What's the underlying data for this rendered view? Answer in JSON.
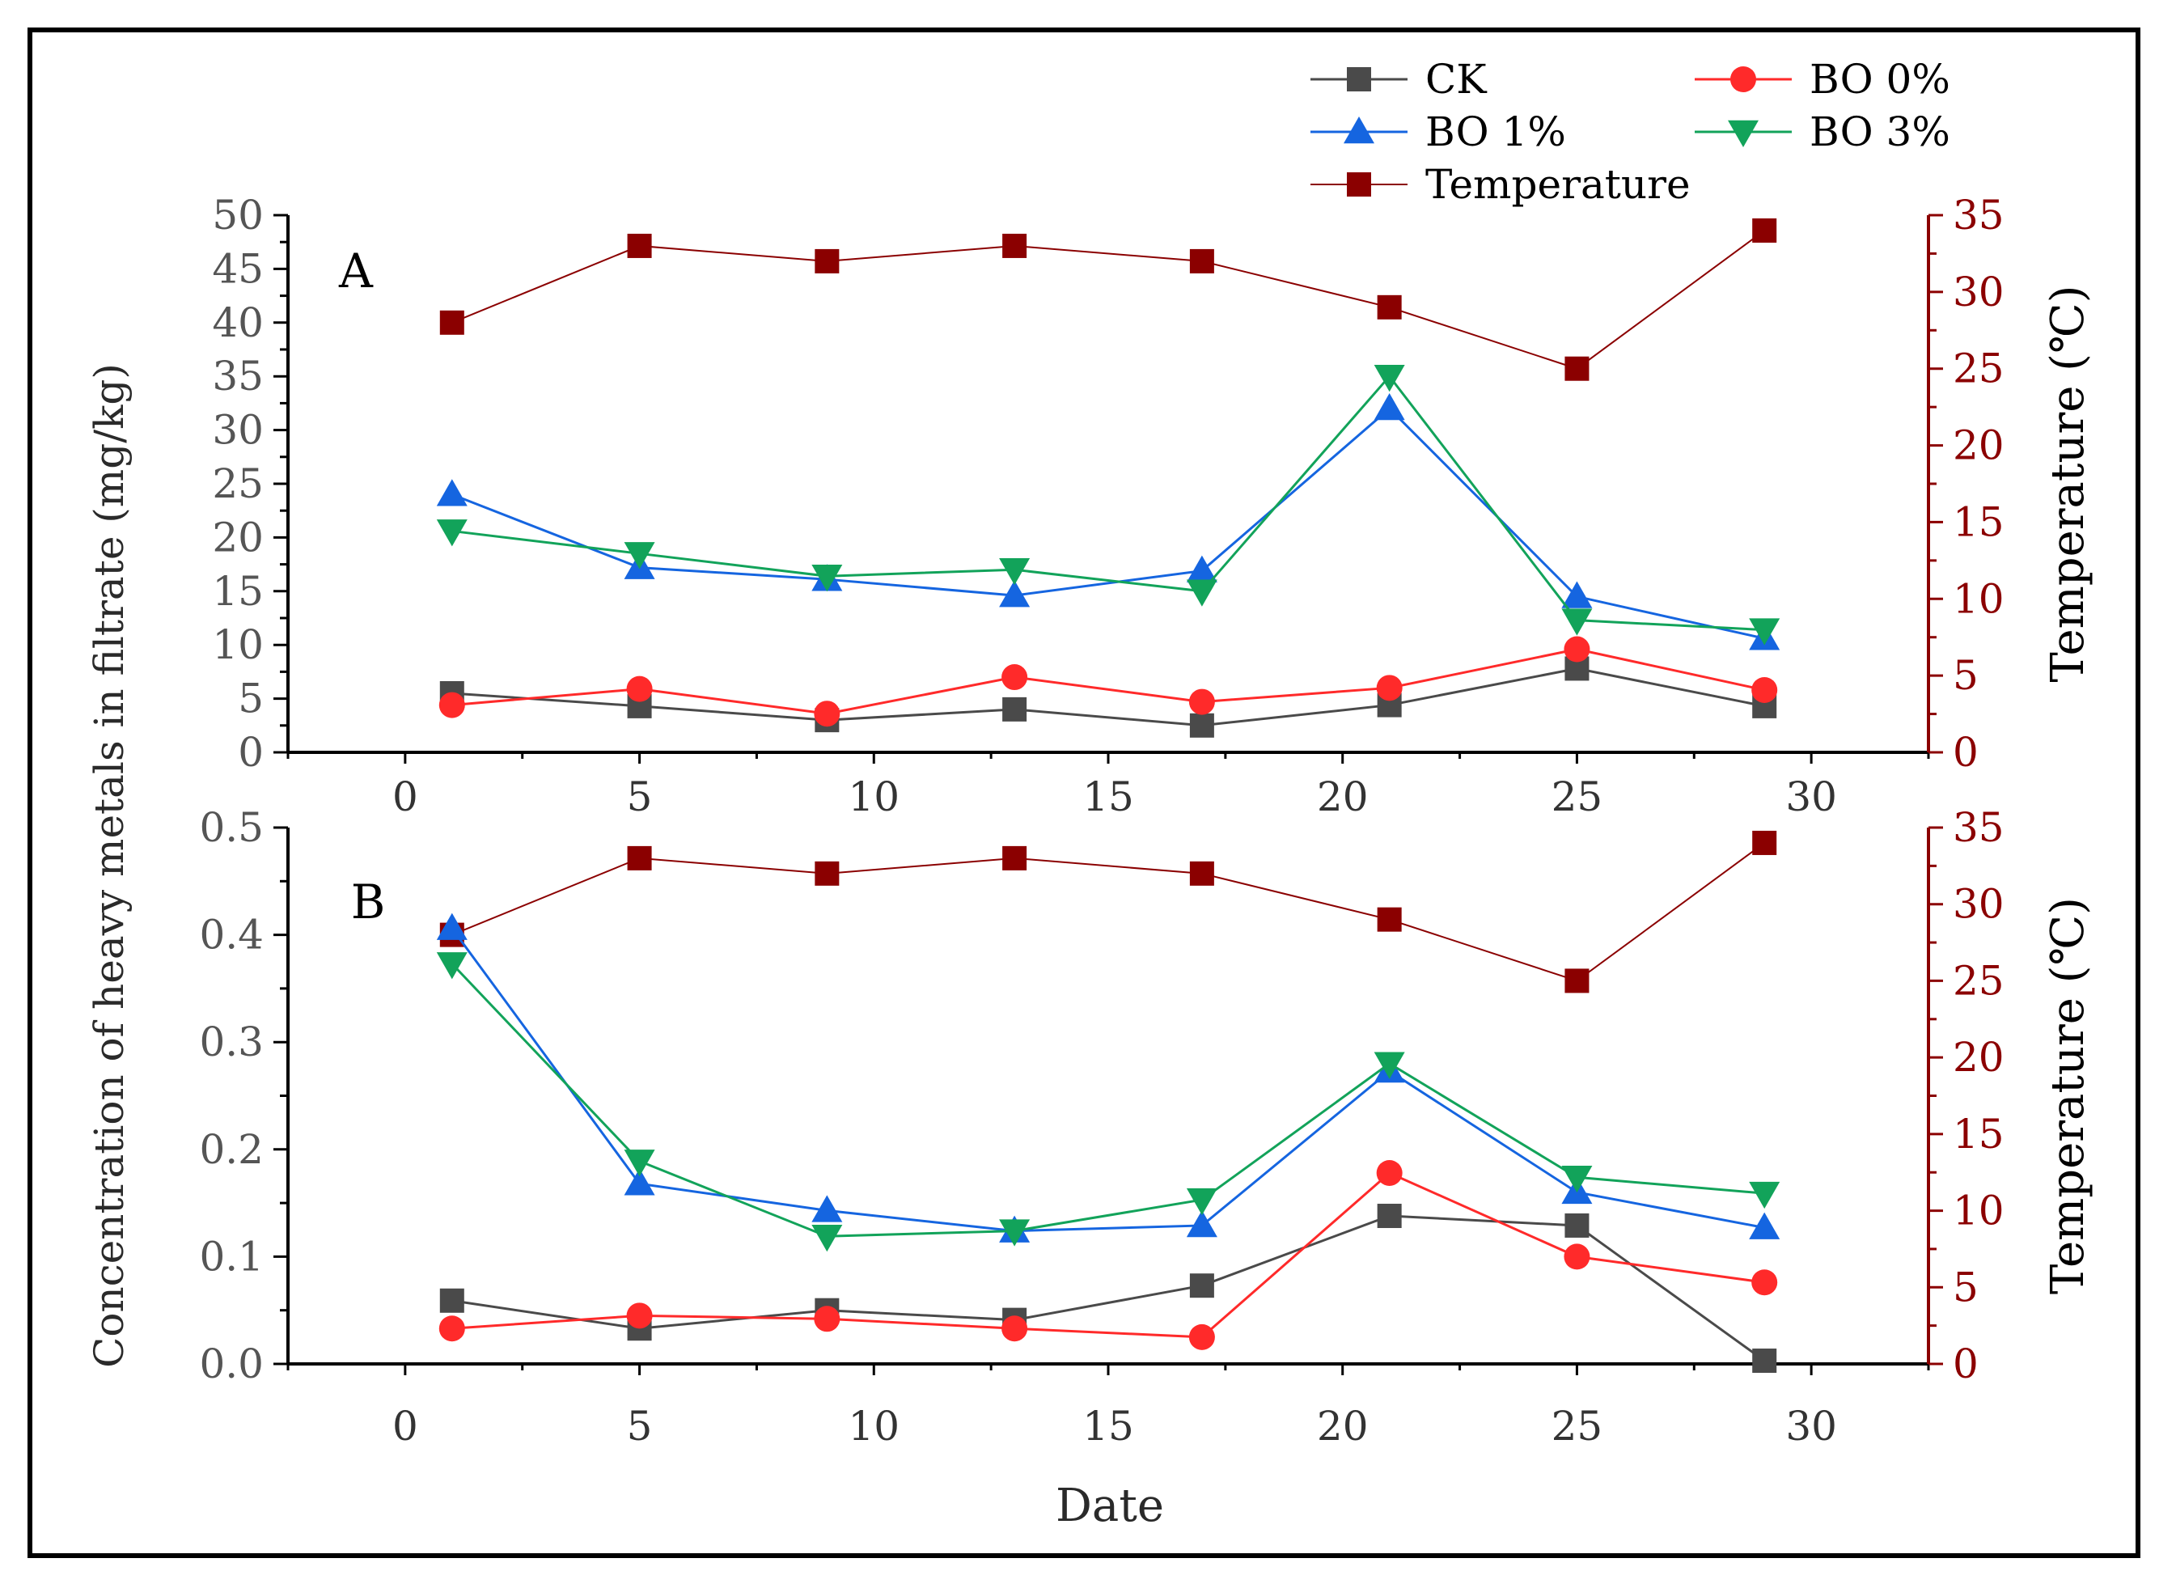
{
  "chart_data": {
    "type": "line",
    "x_label": "Date",
    "y_label_left": "Concentration of heavy metals in filtrate (mg/kg)",
    "y_label_right": "Temperature (℃)",
    "x_ticks": [
      0,
      5,
      10,
      15,
      20,
      25,
      30
    ],
    "xlim": [
      -2.5,
      32.5
    ],
    "dates": [
      1,
      5,
      9,
      13,
      17,
      21,
      25,
      29
    ],
    "legend": [
      {
        "key": "ck",
        "name": "CK",
        "color": "#4a4a4a",
        "marker": "square"
      },
      {
        "key": "bo0",
        "name": "BO 0%",
        "color": "#ff2a2a",
        "marker": "circle"
      },
      {
        "key": "bo1",
        "name": "BO 1%",
        "color": "#1565e0",
        "marker": "triangle-up"
      },
      {
        "key": "bo3",
        "name": "BO 3%",
        "color": "#12a35a",
        "marker": "triangle-down"
      },
      {
        "key": "temp",
        "name": "Temperature",
        "color": "#8b0000",
        "marker": "square"
      }
    ],
    "temperature": [
      28,
      33,
      32,
      33,
      32,
      29,
      25,
      34
    ],
    "panels": [
      {
        "label": "A",
        "ylim": [
          0,
          50
        ],
        "y_ticks": [
          0,
          5,
          10,
          15,
          20,
          25,
          30,
          35,
          40,
          45,
          50
        ],
        "y_tick_labels": [
          "0",
          "5",
          "10",
          "15",
          "20",
          "25",
          "30",
          "35",
          "40",
          "45",
          "50"
        ],
        "y2lim": [
          0,
          35
        ],
        "y2_ticks": [
          0,
          5,
          10,
          15,
          20,
          25,
          30,
          35
        ],
        "series": {
          "ck": [
            5.5,
            4.3,
            3.0,
            4.0,
            2.5,
            4.4,
            7.8,
            4.3
          ],
          "bo0": [
            4.4,
            5.9,
            3.6,
            7.0,
            4.7,
            6.0,
            9.6,
            5.8
          ],
          "bo1": [
            24.0,
            17.2,
            16.1,
            14.6,
            16.9,
            32.0,
            14.5,
            10.6
          ],
          "bo3": [
            20.6,
            18.5,
            16.4,
            17.0,
            15.0,
            35.0,
            12.3,
            11.4
          ]
        }
      },
      {
        "label": "B",
        "ylim": [
          0,
          0.5
        ],
        "y_ticks": [
          0,
          0.1,
          0.2,
          0.3,
          0.4,
          0.5
        ],
        "y_tick_labels": [
          "0.0",
          "0.1",
          "0.2",
          "0.3",
          "0.4",
          "0.5"
        ],
        "y2lim": [
          0,
          35
        ],
        "y2_ticks": [
          0,
          5,
          10,
          15,
          20,
          25,
          30,
          35
        ],
        "series": {
          "ck": [
            0.059,
            0.033,
            0.05,
            0.041,
            0.073,
            0.138,
            0.129,
            0.003
          ],
          "bo0": [
            0.033,
            0.045,
            0.042,
            0.033,
            0.025,
            0.178,
            0.1,
            0.076
          ],
          "bo1": [
            0.406,
            0.168,
            0.143,
            0.124,
            0.129,
            0.273,
            0.16,
            0.127
          ],
          "bo3": [
            0.373,
            0.189,
            0.119,
            0.124,
            0.153,
            0.28,
            0.174,
            0.159
          ]
        }
      }
    ]
  }
}
